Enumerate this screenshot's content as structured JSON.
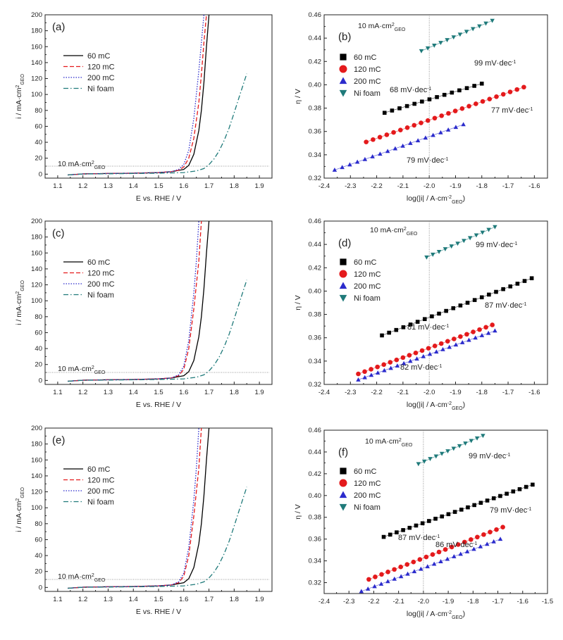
{
  "colors": {
    "s60": "#000000",
    "s120": "#e41a1c",
    "s200": "#2b2bcc",
    "nifoam": "#1f7a7a",
    "guide": "#777777",
    "axis": "#222222"
  },
  "chart_data": [
    {
      "id": "a",
      "type": "line",
      "panel_label": "(a)",
      "xlabel": "E vs. RHE / V",
      "ylabel": "i / mA·cm²GEO",
      "xlim": [
        1.05,
        1.95
      ],
      "ylim": [
        -5,
        200
      ],
      "xticks": [
        1.1,
        1.2,
        1.3,
        1.4,
        1.5,
        1.6,
        1.7,
        1.8,
        1.9
      ],
      "xtick_labels": [
        "1.1",
        "1.2",
        "1.3",
        "1.4",
        "1.5",
        "1.6",
        "1.7",
        "1.8",
        "1.9"
      ],
      "yticks": [
        0,
        20,
        40,
        60,
        80,
        100,
        120,
        140,
        160,
        180,
        200
      ],
      "ytick_labels": [
        "0",
        "20",
        "40",
        "60",
        "80",
        "100",
        "120",
        "140",
        "160",
        "180",
        "200"
      ],
      "grid": false,
      "legend_position": "upper-left",
      "reference_line": {
        "y": 10,
        "label": "10 mA·cm²GEO"
      },
      "series": [
        {
          "name": "60 mC",
          "style": "solid",
          "color_key": "s60",
          "x": [
            1.14,
            1.2,
            1.3,
            1.4,
            1.5,
            1.55,
            1.6,
            1.62,
            1.64,
            1.66,
            1.67,
            1.68,
            1.69,
            1.7
          ],
          "y": [
            -1,
            0.3,
            0.8,
            1.2,
            2,
            3,
            6,
            11,
            25,
            55,
            80,
            115,
            160,
            200
          ]
        },
        {
          "name": "120 mC",
          "style": "dashed",
          "color_key": "s120",
          "x": [
            1.14,
            1.2,
            1.3,
            1.4,
            1.5,
            1.55,
            1.58,
            1.6,
            1.62,
            1.64,
            1.66,
            1.67,
            1.68,
            1.69
          ],
          "y": [
            -1,
            0.3,
            0.8,
            1.2,
            2,
            3,
            5,
            9,
            20,
            45,
            90,
            125,
            165,
            200
          ]
        },
        {
          "name": "200 mC",
          "style": "dotted",
          "color_key": "s200",
          "x": [
            1.14,
            1.2,
            1.3,
            1.4,
            1.5,
            1.55,
            1.58,
            1.6,
            1.62,
            1.64,
            1.66,
            1.67,
            1.68
          ],
          "y": [
            -1,
            0.3,
            0.8,
            1.2,
            2,
            3,
            6,
            12,
            30,
            70,
            130,
            165,
            200
          ]
        },
        {
          "name": "Ni foam",
          "style": "dashdot",
          "color_key": "nifoam",
          "x": [
            1.14,
            1.2,
            1.3,
            1.4,
            1.5,
            1.6,
            1.65,
            1.68,
            1.7,
            1.72,
            1.74,
            1.76,
            1.78,
            1.8,
            1.82,
            1.85
          ],
          "y": [
            -1,
            0.2,
            0.5,
            0.8,
            1.2,
            2,
            4,
            7,
            12,
            19,
            29,
            42,
            58,
            77,
            97,
            126
          ]
        }
      ]
    },
    {
      "id": "b",
      "type": "scatter",
      "panel_label": "(b)",
      "xlabel": "log(|i| / A·cm⁻²GEO)",
      "ylabel": "η / V",
      "xlim": [
        -2.4,
        -1.55
      ],
      "ylim": [
        0.32,
        0.46
      ],
      "xticks": [
        -2.4,
        -2.3,
        -2.2,
        -2.1,
        -2.0,
        -1.9,
        -1.8,
        -1.7,
        -1.6
      ],
      "xtick_labels": [
        "-2.4",
        "-2.3",
        "-2.2",
        "-2.1",
        "-2.0",
        "-1.9",
        "-1.8",
        "-1.7",
        "-1.6"
      ],
      "yticks": [
        0.32,
        0.34,
        0.36,
        0.38,
        0.4,
        0.42,
        0.44,
        0.46
      ],
      "ytick_labels": [
        "0.32",
        "0.34",
        "0.36",
        "0.38",
        "0.40",
        "0.42",
        "0.44",
        "0.46"
      ],
      "grid": false,
      "legend_position": "upper-left",
      "reference_line": {
        "x": -2.0,
        "label": "10 mA·cm²GEO"
      },
      "series": [
        {
          "name": "60 mC",
          "marker": "square",
          "color_key": "s60",
          "x_range": [
            -2.17,
            -1.8
          ],
          "y_range": [
            0.376,
            0.401
          ],
          "n": 14
        },
        {
          "name": "120 mC",
          "marker": "circle",
          "color_key": "s120",
          "x_range": [
            -2.24,
            -1.64
          ],
          "y_range": [
            0.351,
            0.398
          ],
          "n": 24
        },
        {
          "name": "200 mC",
          "marker": "triangle",
          "color_key": "s200",
          "x_range": [
            -2.36,
            -1.87
          ],
          "y_range": [
            0.327,
            0.366
          ],
          "n": 18
        },
        {
          "name": "Ni foam",
          "marker": "triangle-down",
          "color_key": "nifoam",
          "x_range": [
            -2.03,
            -1.76
          ],
          "y_range": [
            0.429,
            0.455
          ],
          "n": 12
        }
      ],
      "annotations": [
        "68 mV·dec⁻¹",
        "77 mV·dec⁻¹",
        "79 mV·dec⁻¹",
        "99 mV·dec⁻¹"
      ]
    },
    {
      "id": "c",
      "type": "line",
      "panel_label": "(c)",
      "xlabel": "E vs. RHE / V",
      "ylabel": "i / mA·cm²GEO",
      "xlim": [
        1.05,
        1.95
      ],
      "ylim": [
        -5,
        200
      ],
      "xticks": [
        1.1,
        1.2,
        1.3,
        1.4,
        1.5,
        1.6,
        1.7,
        1.8,
        1.9
      ],
      "xtick_labels": [
        "1.1",
        "1.2",
        "1.3",
        "1.4",
        "1.5",
        "1.6",
        "1.7",
        "1.8",
        "1.9"
      ],
      "yticks": [
        0,
        20,
        40,
        60,
        80,
        100,
        120,
        140,
        160,
        180,
        200
      ],
      "ytick_labels": [
        "0",
        "20",
        "40",
        "60",
        "80",
        "100",
        "120",
        "140",
        "160",
        "180",
        "200"
      ],
      "grid": false,
      "legend_position": "upper-left",
      "reference_line": {
        "y": 10,
        "label": "10 mA·cm²GEO"
      },
      "series": [
        {
          "name": "60 mC",
          "style": "solid",
          "color_key": "s60",
          "x": [
            1.14,
            1.2,
            1.3,
            1.4,
            1.5,
            1.55,
            1.6,
            1.62,
            1.64,
            1.66,
            1.67,
            1.68,
            1.69,
            1.7
          ],
          "y": [
            -1,
            0.3,
            0.8,
            1.2,
            2,
            3,
            6,
            11,
            25,
            55,
            80,
            115,
            160,
            200
          ]
        },
        {
          "name": "120 mC",
          "style": "dashed",
          "color_key": "s120",
          "x": [
            1.14,
            1.2,
            1.3,
            1.4,
            1.5,
            1.55,
            1.58,
            1.6,
            1.62,
            1.64,
            1.66,
            1.67
          ],
          "y": [
            -1,
            0.3,
            0.8,
            1.2,
            2,
            3,
            6,
            14,
            40,
            90,
            150,
            200
          ]
        },
        {
          "name": "200 mC",
          "style": "dotted",
          "color_key": "s200",
          "x": [
            1.14,
            1.2,
            1.3,
            1.4,
            1.5,
            1.55,
            1.58,
            1.6,
            1.62,
            1.64,
            1.65,
            1.66
          ],
          "y": [
            -1,
            0.3,
            0.8,
            1.2,
            2,
            3,
            7,
            18,
            50,
            110,
            150,
            200
          ]
        },
        {
          "name": "Ni foam",
          "style": "dashdot",
          "color_key": "nifoam",
          "x": [
            1.14,
            1.2,
            1.3,
            1.4,
            1.5,
            1.6,
            1.65,
            1.68,
            1.7,
            1.72,
            1.74,
            1.76,
            1.78,
            1.8,
            1.82,
            1.85
          ],
          "y": [
            -1,
            0.2,
            0.5,
            0.8,
            1.2,
            2,
            4,
            7,
            12,
            19,
            29,
            42,
            58,
            77,
            97,
            126
          ]
        }
      ]
    },
    {
      "id": "d",
      "type": "scatter",
      "panel_label": "(d)",
      "xlabel": "log(|i| / A·cm⁻²GEO)",
      "ylabel": "η / V",
      "xlim": [
        -2.4,
        -1.55
      ],
      "ylim": [
        0.32,
        0.46
      ],
      "xticks": [
        -2.4,
        -2.3,
        -2.2,
        -2.1,
        -2.0,
        -1.9,
        -1.8,
        -1.7,
        -1.6
      ],
      "xtick_labels": [
        "-2.4",
        "-2.3",
        "-2.2",
        "-2.1",
        "-2.0",
        "-1.9",
        "-1.8",
        "-1.7",
        "-1.6"
      ],
      "yticks": [
        0.32,
        0.34,
        0.36,
        0.38,
        0.4,
        0.42,
        0.44,
        0.46
      ],
      "ytick_labels": [
        "0.32",
        "0.34",
        "0.36",
        "0.38",
        "0.40",
        "0.42",
        "0.44",
        "0.46"
      ],
      "grid": false,
      "legend_position": "upper-left",
      "reference_line": {
        "x": -2.0,
        "label": "10 mA·cm²GEO"
      },
      "series": [
        {
          "name": "60 mC",
          "marker": "square",
          "color_key": "s60",
          "x_range": [
            -2.18,
            -1.61
          ],
          "y_range": [
            0.362,
            0.411
          ],
          "n": 22
        },
        {
          "name": "120 mC",
          "marker": "circle",
          "color_key": "s120",
          "x_range": [
            -2.27,
            -1.76
          ],
          "y_range": [
            0.329,
            0.371
          ],
          "n": 22
        },
        {
          "name": "200 mC",
          "marker": "triangle",
          "color_key": "s200",
          "x_range": [
            -2.27,
            -1.75
          ],
          "y_range": [
            0.324,
            0.366
          ],
          "n": 22
        },
        {
          "name": "Ni foam",
          "marker": "triangle-down",
          "color_key": "nifoam",
          "x_range": [
            -2.01,
            -1.75
          ],
          "y_range": [
            0.429,
            0.455
          ],
          "n": 12
        }
      ],
      "annotations": [
        "87 mV·dec⁻¹",
        "81 mV·dec⁻¹",
        "82 mV·dec⁻¹",
        "99 mV·dec⁻¹"
      ]
    },
    {
      "id": "e",
      "type": "line",
      "panel_label": "(e)",
      "xlabel": "E vs. RHE / V",
      "ylabel": "i / mA·cm²GEO",
      "xlim": [
        1.05,
        1.95
      ],
      "ylim": [
        -5,
        200
      ],
      "xticks": [
        1.1,
        1.2,
        1.3,
        1.4,
        1.5,
        1.6,
        1.7,
        1.8,
        1.9
      ],
      "xtick_labels": [
        "1.1",
        "1.2",
        "1.3",
        "1.4",
        "1.5",
        "1.6",
        "1.7",
        "1.8",
        "1.9"
      ],
      "yticks": [
        0,
        20,
        40,
        60,
        80,
        100,
        120,
        140,
        160,
        180,
        200
      ],
      "ytick_labels": [
        "0",
        "20",
        "40",
        "60",
        "80",
        "100",
        "120",
        "140",
        "160",
        "180",
        "200"
      ],
      "grid": false,
      "legend_position": "upper-left",
      "reference_line": {
        "y": 10,
        "label": "10 mA·cm²GEO"
      },
      "series": [
        {
          "name": "60 mC",
          "style": "solid",
          "color_key": "s60",
          "x": [
            1.14,
            1.2,
            1.3,
            1.4,
            1.5,
            1.55,
            1.6,
            1.62,
            1.64,
            1.66,
            1.67,
            1.68,
            1.69,
            1.7
          ],
          "y": [
            -1,
            0.3,
            0.8,
            1.2,
            2,
            3,
            6,
            11,
            25,
            55,
            80,
            115,
            160,
            200
          ]
        },
        {
          "name": "120 mC",
          "style": "dashed",
          "color_key": "s120",
          "x": [
            1.14,
            1.2,
            1.3,
            1.4,
            1.5,
            1.55,
            1.58,
            1.6,
            1.62,
            1.64,
            1.66,
            1.67
          ],
          "y": [
            -1,
            0.3,
            0.8,
            1.2,
            2,
            3,
            6,
            14,
            40,
            90,
            150,
            200
          ]
        },
        {
          "name": "200 mC",
          "style": "dotted",
          "color_key": "s200",
          "x": [
            1.14,
            1.2,
            1.3,
            1.4,
            1.5,
            1.55,
            1.58,
            1.6,
            1.62,
            1.64,
            1.65,
            1.66
          ],
          "y": [
            -1,
            0.3,
            0.8,
            1.2,
            2,
            3,
            7,
            18,
            50,
            110,
            150,
            200
          ]
        },
        {
          "name": "Ni foam",
          "style": "dashdot",
          "color_key": "nifoam",
          "x": [
            1.14,
            1.2,
            1.3,
            1.4,
            1.5,
            1.6,
            1.65,
            1.68,
            1.7,
            1.72,
            1.74,
            1.76,
            1.78,
            1.8,
            1.82,
            1.85
          ],
          "y": [
            -1,
            0.2,
            0.5,
            0.8,
            1.2,
            2,
            4,
            7,
            12,
            19,
            29,
            42,
            58,
            77,
            97,
            126
          ]
        }
      ]
    },
    {
      "id": "f",
      "type": "scatter",
      "panel_label": "(f)",
      "xlabel": "log(|i| / A·cm⁻²GEO)",
      "ylabel": "η / V",
      "xlim": [
        -2.4,
        -1.5
      ],
      "ylim": [
        0.31,
        0.46
      ],
      "xticks": [
        -2.4,
        -2.3,
        -2.2,
        -2.1,
        -2.0,
        -1.9,
        -1.8,
        -1.7,
        -1.6,
        -1.5
      ],
      "xtick_labels": [
        "-2.4",
        "-2.3",
        "-2.2",
        "-2.1",
        "-2.0",
        "-1.9",
        "-1.8",
        "-1.7",
        "-1.6",
        "-1.5"
      ],
      "yticks": [
        0.32,
        0.34,
        0.36,
        0.38,
        0.4,
        0.42,
        0.44,
        0.46
      ],
      "ytick_labels": [
        "0.32",
        "0.34",
        "0.36",
        "0.38",
        "0.40",
        "0.42",
        "0.44",
        "0.46"
      ],
      "grid": false,
      "legend_position": "upper-left",
      "reference_line": {
        "x": -2.0,
        "label": "10 mA·cm²GEO"
      },
      "series": [
        {
          "name": "60 mC",
          "marker": "square",
          "color_key": "s60",
          "x_range": [
            -2.16,
            -1.56
          ],
          "y_range": [
            0.362,
            0.41
          ],
          "n": 24
        },
        {
          "name": "120 mC",
          "marker": "circle",
          "color_key": "s120",
          "x_range": [
            -2.22,
            -1.68
          ],
          "y_range": [
            0.323,
            0.371
          ],
          "n": 22
        },
        {
          "name": "200 mC",
          "marker": "triangle",
          "color_key": "s200",
          "x_range": [
            -2.25,
            -1.69
          ],
          "y_range": [
            0.312,
            0.36
          ],
          "n": 22
        },
        {
          "name": "Ni foam",
          "marker": "triangle-down",
          "color_key": "nifoam",
          "x_range": [
            -2.02,
            -1.76
          ],
          "y_range": [
            0.429,
            0.455
          ],
          "n": 12
        }
      ],
      "annotations": [
        "79 mV·dec⁻¹",
        "87 mV·dec⁻¹",
        "86 mV·dec⁻¹",
        "99 mV·dec⁻¹"
      ]
    }
  ]
}
